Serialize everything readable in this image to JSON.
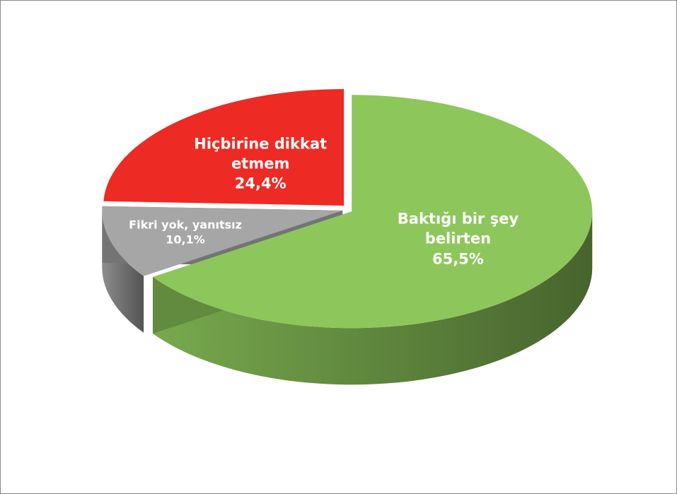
{
  "chart_data": {
    "type": "pie",
    "categories": [
      "Baktığı bir şey belirten",
      "Fikri yok, yanıtsız",
      "Hiçbirine dikkat etmem"
    ],
    "values": [
      65.5,
      10.1,
      24.4
    ],
    "value_labels": [
      "65,5%",
      "10,1%",
      "24,4%"
    ],
    "colors": [
      "#8dc75b",
      "#a6a6a6",
      "#ee2a24"
    ]
  }
}
